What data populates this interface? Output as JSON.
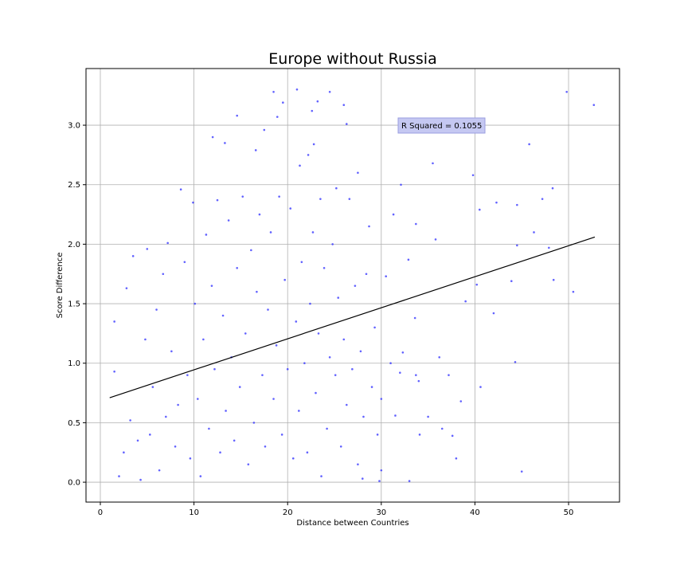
{
  "chart_data": {
    "type": "scatter",
    "title": "Europe without Russia",
    "x_label": "Distance between Countries",
    "y_label": "Score Difference",
    "xlim": [
      -1.53,
      55.44
    ],
    "ylim": [
      -0.167,
      3.476
    ],
    "xticks": [
      0,
      10,
      20,
      30,
      40,
      50
    ],
    "yticks": [
      {
        "value": 0,
        "label": "0.0"
      },
      0.5,
      {
        "value": 1,
        "label": "1.0"
      },
      1.5,
      {
        "value": 2,
        "label": "2.0"
      },
      2.5,
      {
        "value": 3,
        "label": "3.0"
      }
    ],
    "grid": true,
    "x": [
      1.5,
      1.5,
      18.5,
      21.0,
      24.5,
      14.6,
      19.5,
      23.2,
      26.0,
      12.0,
      13.3,
      17.5,
      16.6,
      18.9,
      49.8,
      52.7,
      45.8,
      35.5,
      39.8,
      42.3,
      44.5,
      47.2,
      48.3,
      46.3,
      44.5,
      40.5,
      40.2,
      42.0,
      43.9,
      48.4,
      50.5,
      47.9,
      44.3,
      45.0,
      40.6,
      38.5,
      37.6,
      37.2,
      36.2,
      35.8,
      33.7,
      32.9,
      32.1,
      31.3,
      33.6,
      34.1,
      33.0,
      33.7,
      32.3,
      31.5,
      30.0,
      29.8,
      28.0,
      27.5,
      26.3,
      25.2,
      22.6,
      23.5,
      22.2,
      22.8,
      21.3,
      2.0,
      2.5,
      2.8,
      3.5,
      3.2,
      4.0,
      4.3,
      4.8,
      5.0,
      5.3,
      5.6,
      6.0,
      6.3,
      6.7,
      7.0,
      7.2,
      7.6,
      8.0,
      8.3,
      8.6,
      9.0,
      9.3,
      9.6,
      9.9,
      10.1,
      10.4,
      10.7,
      11.0,
      11.3,
      11.6,
      11.9,
      12.2,
      12.5,
      12.8,
      13.1,
      13.4,
      13.7,
      14.0,
      14.3,
      14.6,
      14.9,
      15.2,
      15.5,
      15.8,
      16.1,
      16.4,
      16.7,
      17.0,
      17.3,
      17.6,
      17.9,
      18.2,
      18.5,
      18.8,
      19.1,
      19.4,
      19.7,
      20.0,
      20.3,
      20.6,
      20.9,
      21.2,
      21.5,
      21.8,
      22.1,
      22.4,
      22.7,
      23.0,
      23.3,
      23.6,
      23.9,
      24.2,
      24.5,
      24.8,
      25.1,
      25.4,
      25.7,
      26.0,
      26.3,
      26.6,
      26.9,
      27.2,
      27.5,
      27.8,
      28.1,
      28.4,
      28.7,
      29.0,
      29.3,
      29.6,
      30.0,
      30.5,
      31.0,
      32.0,
      34.0,
      35.0,
      36.5,
      38.0,
      39.0
    ],
    "series": [
      {
        "color": "#3b3bff",
        "values": [
          1.35,
          0.93,
          3.28,
          3.3,
          3.28,
          3.08,
          3.19,
          3.2,
          3.17,
          2.9,
          2.85,
          2.96,
          2.79,
          3.07,
          3.28,
          3.17,
          2.84,
          2.68,
          2.58,
          2.35,
          2.33,
          2.38,
          2.47,
          2.1,
          1.99,
          2.29,
          1.66,
          1.42,
          1.69,
          1.7,
          1.6,
          1.97,
          1.01,
          0.09,
          0.8,
          0.68,
          0.39,
          0.9,
          1.05,
          2.04,
          2.17,
          1.87,
          2.5,
          2.25,
          1.38,
          0.4,
          0.01,
          0.9,
          1.09,
          0.56,
          0.1,
          0.01,
          0.03,
          2.6,
          3.01,
          2.47,
          3.12,
          2.38,
          2.75,
          2.84,
          2.66,
          0.05,
          0.25,
          1.63,
          1.9,
          0.52,
          0.35,
          0.02,
          1.2,
          1.96,
          0.4,
          0.8,
          1.45,
          0.1,
          1.75,
          0.55,
          2.01,
          1.1,
          0.3,
          0.65,
          2.46,
          1.85,
          0.9,
          0.2,
          2.35,
          1.5,
          0.7,
          0.05,
          1.2,
          2.08,
          0.45,
          1.65,
          0.95,
          2.37,
          0.25,
          1.4,
          0.6,
          2.2,
          1.05,
          0.35,
          1.8,
          0.8,
          2.4,
          1.25,
          0.15,
          1.95,
          0.5,
          1.6,
          2.25,
          0.9,
          0.3,
          1.45,
          2.1,
          0.7,
          1.15,
          2.4,
          0.4,
          1.7,
          0.95,
          2.3,
          0.2,
          1.35,
          0.6,
          1.85,
          1.0,
          0.25,
          1.5,
          2.1,
          0.75,
          1.25,
          0.05,
          1.8,
          0.45,
          1.05,
          2.0,
          0.9,
          1.55,
          0.3,
          1.2,
          0.65,
          2.38,
          0.95,
          1.65,
          0.15,
          1.1,
          0.55,
          1.75,
          2.15,
          0.8,
          1.3,
          0.4,
          0.7,
          1.73,
          1.0,
          0.92,
          0.85,
          0.55,
          0.45,
          0.2,
          1.52
        ]
      }
    ],
    "trend_line": {
      "color": "#000000",
      "x": [
        1.0,
        52.8
      ],
      "values": [
        0.71,
        2.06
      ]
    },
    "annotation": "R Squared = 0.1055"
  }
}
